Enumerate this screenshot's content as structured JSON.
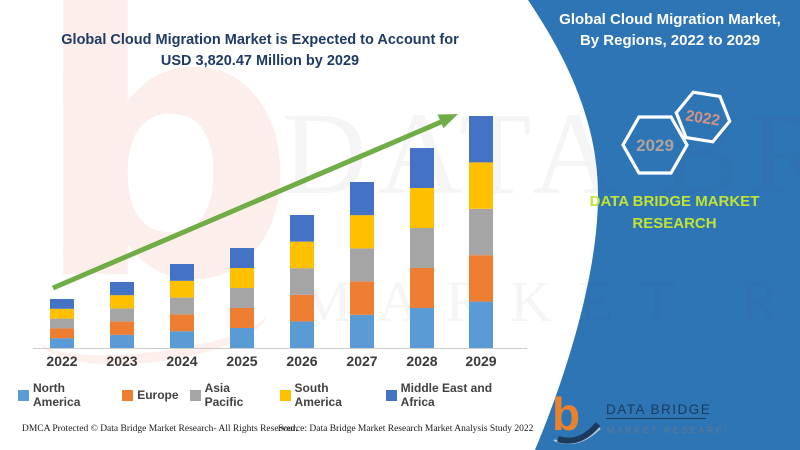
{
  "header": {
    "title_line1": "Global Cloud Migration Market is Expected to Account for",
    "title_line2": "USD 3,820.47 Million by 2029"
  },
  "chart_data": {
    "type": "bar",
    "stacked": true,
    "title": "Global Cloud Migration Market is Expected to Account for USD 3,820.47 Million by 2029",
    "unit": "USD Million",
    "categories": [
      "2022",
      "2023",
      "2024",
      "2025",
      "2026",
      "2027",
      "2028",
      "2029"
    ],
    "series": [
      {
        "name": "North America",
        "color": "#5B9BD5",
        "values": [
          161.4,
          217.4,
          276.6,
          329.4,
          438.0,
          546.8,
          658.6,
          764.1
        ]
      },
      {
        "name": "Europe",
        "color": "#ED7D31",
        "values": [
          161.4,
          217.4,
          276.6,
          329.4,
          438.0,
          546.8,
          658.6,
          764.1
        ]
      },
      {
        "name": "Asia Pacific",
        "color": "#A5A5A5",
        "values": [
          161.4,
          217.4,
          276.6,
          329.4,
          438.0,
          546.8,
          658.6,
          764.1
        ]
      },
      {
        "name": "South America",
        "color": "#FFC000",
        "values": [
          161.4,
          217.4,
          276.6,
          329.4,
          438.0,
          546.8,
          658.6,
          764.1
        ]
      },
      {
        "name": "Middle East and Africa",
        "color": "#4472C4",
        "values": [
          161.4,
          217.4,
          276.6,
          329.4,
          438.0,
          546.8,
          658.6,
          764.1
        ]
      }
    ],
    "totals_usd_million": [
      807,
      1087,
      1383,
      1647,
      2190,
      2734,
      3293,
      3820.47
    ],
    "ylim": [
      0,
      3900
    ],
    "grid": false,
    "legend_position": "bottom",
    "annotation": "upward trend arrow from 2022 bar to 2029 bar"
  },
  "side_panel": {
    "title_line1": "Global Cloud Migration Market,",
    "title_line2": "By Regions, 2022 to 2029",
    "hexagons": [
      {
        "label": "2029"
      },
      {
        "label": "2022"
      }
    ],
    "brand_line1": "DATA BRIDGE MARKET",
    "brand_line2": "RESEARCH",
    "logo_title": "DATA BRIDGE",
    "logo_subtitle": "MARKET RESEARCH",
    "logo_glyph": "b"
  },
  "watermark": {
    "line1": "DATA BRIDGE",
    "line2": "MARKET RESEARCH",
    "glyph": "b"
  },
  "footer": {
    "dmca": "DMCA Protected © Data Bridge Market Research- All Rights Reserved.",
    "source": "Source: Data Bridge Market Research Market Analysis Study 2022"
  },
  "colors": {
    "panel_bg": "#2E75B6",
    "title_text": "#1F3A64",
    "panel_title_text": "#FFFFFF",
    "brand_text": "#C3E235",
    "hex_2029_text": "#AFA29B",
    "hex_2022_text": "#D89284",
    "hex_stroke": "#FFFFFF",
    "legend_text": "#414141",
    "axis_label_text": "#3A3A3A",
    "axis_line": "#CCCCCC",
    "footer_text": "#1A1A1A",
    "trend_arrow": "#70AD47",
    "logo_navy": "#1C3A5C",
    "logo_orange": "#E8822F",
    "logo_sub_text": "#62798F",
    "watermark_pink": "#F2A287"
  }
}
